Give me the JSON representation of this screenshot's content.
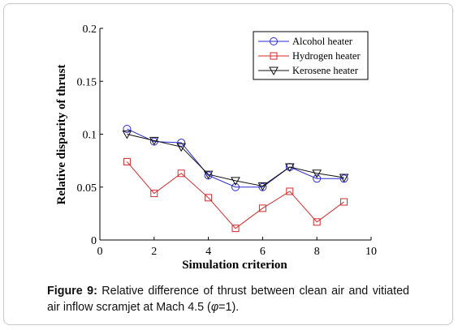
{
  "caption": {
    "label": "Figure 9:",
    "text_main": " Relative difference of thrust between clean air and vitiated air inflow scramjet at Mach 4.5 (",
    "phi_symbol": "φ",
    "text_end": "=1)."
  },
  "chart_data": {
    "type": "line",
    "xlabel": "Simulation criterion",
    "ylabel": "Relative disparity of thrust",
    "xlim": [
      0,
      10
    ],
    "ylim": [
      0,
      0.2
    ],
    "xticks": [
      0,
      2,
      4,
      6,
      8,
      10
    ],
    "yticks": [
      0,
      0.05,
      0.1,
      0.15,
      0.2
    ],
    "xtick_labels": [
      "0",
      "2",
      "4",
      "6",
      "8",
      "10"
    ],
    "ytick_labels": [
      "0",
      "0.05",
      "0.1",
      "0.15",
      "0.2"
    ],
    "grid": false,
    "legend_position": "top-right",
    "x": [
      1,
      2,
      3,
      4,
      5,
      6,
      7,
      8,
      9
    ],
    "series": [
      {
        "name": "Alcohol heater",
        "marker": "circle",
        "color": "#2a2ad6",
        "values": [
          0.105,
          0.093,
          0.092,
          0.061,
          0.05,
          0.05,
          0.069,
          0.058,
          0.058
        ]
      },
      {
        "name": "Hydrogen heater",
        "marker": "square",
        "color": "#d42a2a",
        "values": [
          0.074,
          0.044,
          0.063,
          0.04,
          0.011,
          0.03,
          0.046,
          0.017,
          0.036
        ]
      },
      {
        "name": "Kerosene heater",
        "marker": "triangle-down",
        "color": "#111111",
        "values": [
          0.1,
          0.094,
          0.088,
          0.062,
          0.056,
          0.051,
          0.069,
          0.063,
          0.059
        ]
      }
    ]
  }
}
